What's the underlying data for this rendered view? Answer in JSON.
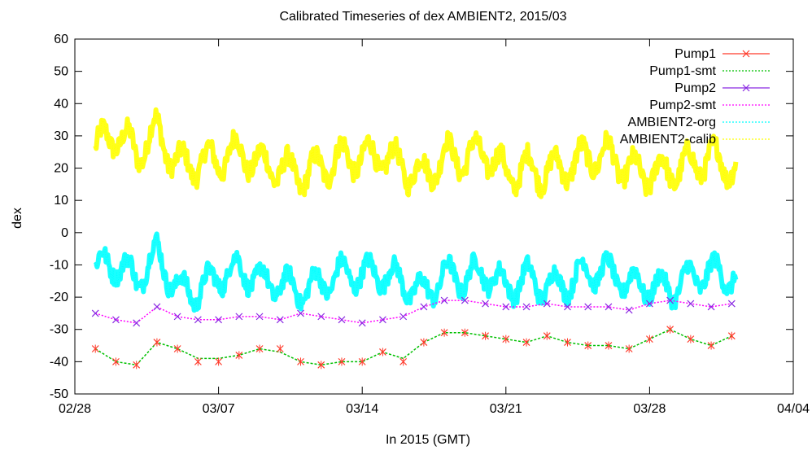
{
  "chart_data": {
    "type": "line",
    "title": "Calibrated Timeseries of dex AMBIENT2, 2015/03",
    "xlabel": "In 2015 (GMT)",
    "ylabel": "dex",
    "ylim": [
      -50,
      60
    ],
    "xlim": [
      "2015-02-28",
      "2015-04-04"
    ],
    "yticks": [
      60,
      50,
      40,
      30,
      20,
      10,
      0,
      -10,
      -20,
      -30,
      -40,
      -50
    ],
    "xticks": [
      "02/28",
      "03/07",
      "03/14",
      "03/21",
      "03/28",
      "04/04"
    ],
    "legend_position": "top-right",
    "grid": false,
    "series": [
      {
        "name": "Pump1",
        "color": "#ff3a2a",
        "marker": "x",
        "x": [
          "03/01",
          "03/02",
          "03/03",
          "03/04",
          "03/05",
          "03/06",
          "03/07",
          "03/08",
          "03/09",
          "03/10",
          "03/11",
          "03/12",
          "03/13",
          "03/14",
          "03/15",
          "03/16",
          "03/17",
          "03/18",
          "03/19",
          "03/20",
          "03/21",
          "03/22",
          "03/23",
          "03/24",
          "03/25",
          "03/26",
          "03/27",
          "03/28",
          "03/29",
          "03/30",
          "03/31",
          "04/01"
        ],
        "values": [
          -36,
          -40,
          -41,
          -34,
          -36,
          -40,
          -40,
          -38,
          -36,
          -36,
          -40,
          -41,
          -40,
          -40,
          -37,
          -40,
          -34,
          -31,
          -31,
          -32,
          -33,
          -34,
          -32,
          -34,
          -35,
          -35,
          -36,
          -33,
          -30,
          -33,
          -35,
          -32
        ]
      },
      {
        "name": "Pump1-smt",
        "color": "#00c000",
        "x": [
          "03/01",
          "03/02",
          "03/03",
          "03/04",
          "03/05",
          "03/06",
          "03/07",
          "03/08",
          "03/09",
          "03/10",
          "03/11",
          "03/12",
          "03/13",
          "03/14",
          "03/15",
          "03/16",
          "03/17",
          "03/18",
          "03/19",
          "03/20",
          "03/21",
          "03/22",
          "03/23",
          "03/24",
          "03/25",
          "03/26",
          "03/27",
          "03/28",
          "03/29",
          "03/30",
          "03/31",
          "04/01"
        ],
        "values": [
          -36,
          -40,
          -41,
          -34,
          -36,
          -39,
          -39,
          -38,
          -36,
          -37,
          -40,
          -41,
          -40,
          -40,
          -37,
          -39,
          -34,
          -31,
          -31,
          -32,
          -33,
          -34,
          -32,
          -34,
          -35,
          -35,
          -36,
          -33,
          -30,
          -33,
          -35,
          -32
        ]
      },
      {
        "name": "Pump2",
        "color": "#8a2be2",
        "marker": "x",
        "x": [
          "03/01",
          "03/02",
          "03/03",
          "03/04",
          "03/05",
          "03/06",
          "03/07",
          "03/08",
          "03/09",
          "03/10",
          "03/11",
          "03/12",
          "03/13",
          "03/14",
          "03/15",
          "03/16",
          "03/17",
          "03/18",
          "03/19",
          "03/20",
          "03/21",
          "03/22",
          "03/23",
          "03/24",
          "03/25",
          "03/26",
          "03/27",
          "03/28",
          "03/29",
          "03/30",
          "03/31",
          "04/01"
        ],
        "values": [
          -25,
          -27,
          -28,
          -23,
          -26,
          -27,
          -27,
          -26,
          -26,
          -27,
          -25,
          -26,
          -27,
          -28,
          -27,
          -26,
          -23,
          -21,
          -21,
          -22,
          -23,
          -23,
          -22,
          -23,
          -23,
          -23,
          -24,
          -22,
          -21,
          -22,
          -23,
          -22
        ]
      },
      {
        "name": "Pump2-smt",
        "color": "#ff00ff",
        "x": [
          "03/01",
          "03/02",
          "03/03",
          "03/04",
          "03/05",
          "03/06",
          "03/07",
          "03/08",
          "03/09",
          "03/10",
          "03/11",
          "03/12",
          "03/13",
          "03/14",
          "03/15",
          "03/16",
          "03/17",
          "03/18",
          "03/19",
          "03/20",
          "03/21",
          "03/22",
          "03/23",
          "03/24",
          "03/25",
          "03/26",
          "03/27",
          "03/28",
          "03/29",
          "03/30",
          "03/31",
          "04/01"
        ],
        "values": [
          -25,
          -27,
          -28,
          -23,
          -26,
          -27,
          -27,
          -26,
          -26,
          -27,
          -25,
          -26,
          -27,
          -28,
          -27,
          -26,
          -23,
          -21,
          -21,
          -22,
          -23,
          -23,
          -22,
          -23,
          -23,
          -23,
          -24,
          -22,
          -21,
          -22,
          -23,
          -22
        ]
      },
      {
        "name": "AMBIENT2-org",
        "color": "#00ffff",
        "x": [
          "03/01",
          "03/02",
          "03/03",
          "03/04",
          "03/05",
          "03/06",
          "03/07",
          "03/08",
          "03/09",
          "03/10",
          "03/11",
          "03/12",
          "03/13",
          "03/14",
          "03/15",
          "03/16",
          "03/17",
          "03/18",
          "03/19",
          "03/20",
          "03/21",
          "03/22",
          "03/23",
          "03/24",
          "03/25",
          "03/26",
          "03/27",
          "03/28",
          "03/29",
          "03/30",
          "03/31",
          "04/01"
        ],
        "values": [
          -11,
          -12,
          -17,
          -6,
          -15,
          -16,
          -14,
          -14,
          -17,
          -15,
          -15,
          -14,
          -14,
          -16,
          -14,
          -14,
          -16,
          -12,
          -16,
          -15,
          -18,
          -12,
          -14,
          -15,
          -14,
          -15,
          -16,
          -14,
          -15,
          -14,
          -15,
          -16
        ]
      },
      {
        "name": "AMBIENT2-calib",
        "color": "#ffff00",
        "x": [
          "03/01",
          "03/02",
          "03/03",
          "03/04",
          "03/05",
          "03/06",
          "03/07",
          "03/08",
          "03/09",
          "03/10",
          "03/11",
          "03/12",
          "03/13",
          "03/14",
          "03/15",
          "03/16",
          "03/17",
          "03/18",
          "03/19",
          "03/20",
          "03/21",
          "03/22",
          "03/23",
          "03/24",
          "03/25",
          "03/26",
          "03/27",
          "03/28",
          "03/29",
          "03/30",
          "03/31",
          "04/01"
        ],
        "values": [
          26,
          28,
          22,
          32,
          24,
          24,
          22,
          22,
          19,
          21,
          21,
          22,
          22,
          20,
          22,
          22,
          21,
          25,
          21,
          22,
          17,
          22,
          22,
          21,
          21,
          21,
          19,
          21,
          22,
          21,
          20,
          18
        ]
      }
    ]
  }
}
